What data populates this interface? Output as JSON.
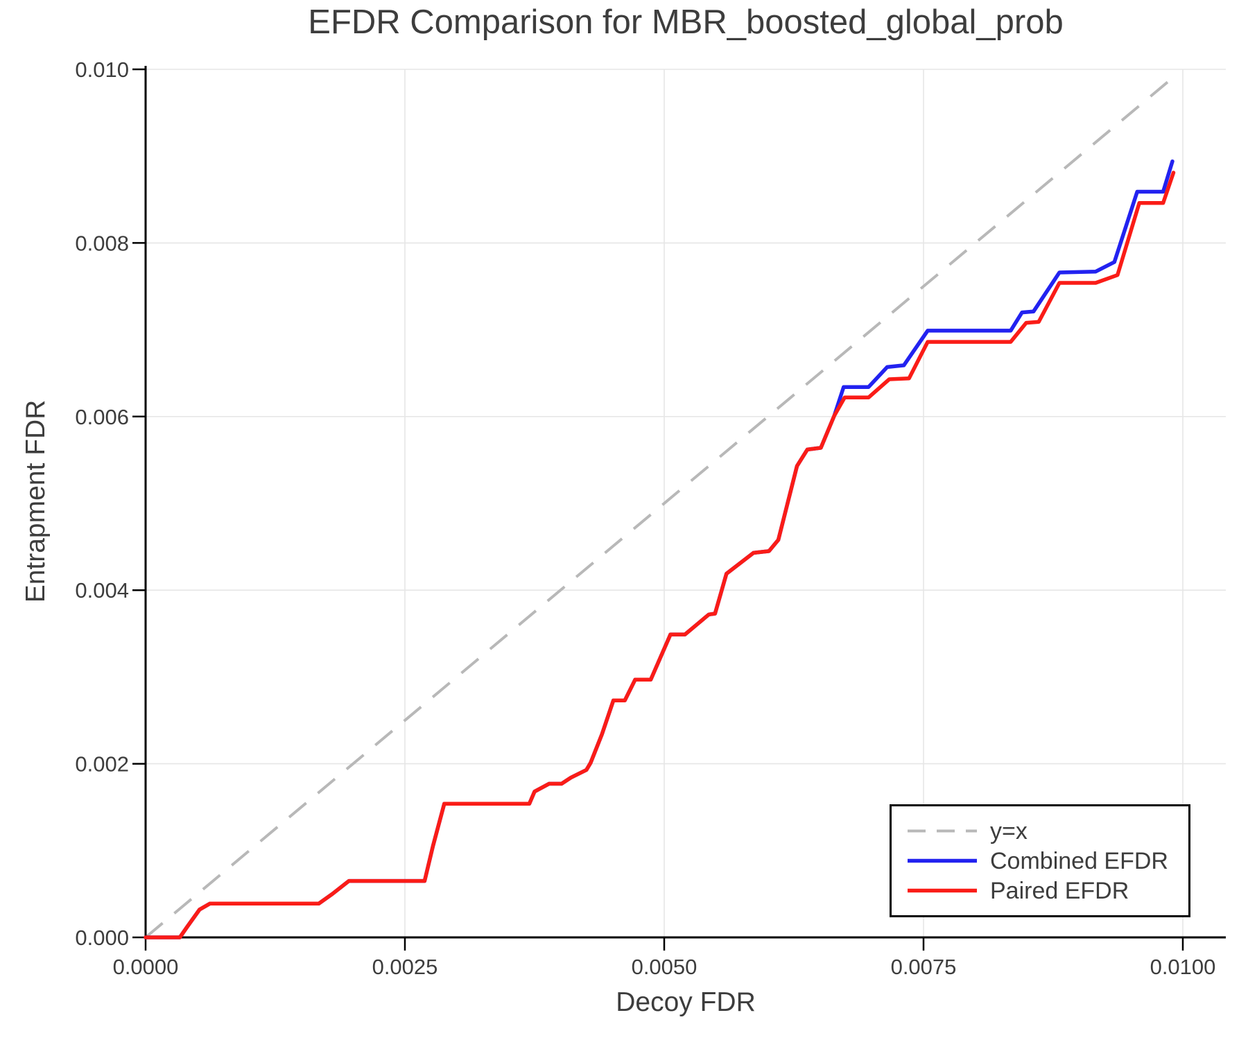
{
  "chart_data": {
    "type": "line",
    "title": "EFDR Comparison for MBR_boosted_global_prob",
    "xlabel": "Decoy FDR",
    "ylabel": "Entrapment FDR",
    "xlim": [
      0,
      0.01042
    ],
    "ylim": [
      0,
      0.01004
    ],
    "grid": true,
    "legend_position": "lower right",
    "xticks": [
      0,
      0.0025,
      0.005,
      0.0075,
      0.01
    ],
    "xtick_labels": [
      "0.0000",
      "0.0025",
      "0.0050",
      "0.0075",
      "0.0100"
    ],
    "yticks": [
      0,
      0.002,
      0.004,
      0.006,
      0.008,
      0.01
    ],
    "ytick_labels": [
      "0.000",
      "0.002",
      "0.004",
      "0.006",
      "0.008",
      "0.010"
    ],
    "identity_line": {
      "label": "y=x",
      "style": "dashed",
      "color": "#b8b8b8",
      "x": [
        0,
        0.00996
      ],
      "y": [
        0,
        0.00996
      ]
    },
    "series": [
      {
        "name": "Combined EFDR",
        "color": "#2222f0",
        "x": [
          0,
          0.00033,
          0.0004,
          0.00052,
          0.00062,
          0.00167,
          0.0018,
          0.00196,
          0.00269,
          0.00277,
          0.00288,
          0.0037,
          0.00375,
          0.00389,
          0.00401,
          0.0041,
          0.00425,
          0.00429,
          0.0044,
          0.00451,
          0.00462,
          0.00472,
          0.00487,
          0.00506,
          0.0052,
          0.00533,
          0.00543,
          0.00549,
          0.0056,
          0.00586,
          0.00601,
          0.0061,
          0.00628,
          0.00638,
          0.00651,
          0.00664,
          0.00673,
          0.00697,
          0.00715,
          0.00731,
          0.00754,
          0.00834,
          0.00845,
          0.00856,
          0.00881,
          0.00916,
          0.00934,
          0.00956,
          0.00981,
          0.0099
        ],
        "y": [
          0,
          0,
          0.00012,
          0.00032,
          0.00039,
          0.00039,
          0.0005,
          0.00065,
          0.00065,
          0.00105,
          0.00154,
          0.00154,
          0.00168,
          0.00177,
          0.00177,
          0.00184,
          0.00193,
          0.00201,
          0.00234,
          0.00273,
          0.00273,
          0.00297,
          0.00297,
          0.00349,
          0.00349,
          0.00362,
          0.00372,
          0.00373,
          0.00419,
          0.00443,
          0.00445,
          0.00458,
          0.00543,
          0.00562,
          0.00564,
          0.00601,
          0.00634,
          0.00634,
          0.00657,
          0.00659,
          0.00699,
          0.00699,
          0.0072,
          0.00721,
          0.00766,
          0.00767,
          0.00778,
          0.00859,
          0.00859,
          0.00894
        ]
      },
      {
        "name": "Paired EFDR",
        "color": "#fa1c17",
        "x": [
          0,
          0.00033,
          0.0004,
          0.00052,
          0.00062,
          0.00167,
          0.0018,
          0.00196,
          0.00269,
          0.00277,
          0.00288,
          0.0037,
          0.00375,
          0.00389,
          0.00401,
          0.0041,
          0.00425,
          0.00429,
          0.0044,
          0.00451,
          0.00462,
          0.00472,
          0.00487,
          0.00506,
          0.0052,
          0.00533,
          0.00543,
          0.00549,
          0.0056,
          0.00586,
          0.00601,
          0.0061,
          0.00628,
          0.00638,
          0.00651,
          0.00664,
          0.00674,
          0.00697,
          0.00717,
          0.00736,
          0.00754,
          0.00834,
          0.00849,
          0.00861,
          0.00881,
          0.00916,
          0.00937,
          0.00958,
          0.00981,
          0.00991
        ],
        "y": [
          0,
          0,
          0.00012,
          0.00032,
          0.00039,
          0.00039,
          0.0005,
          0.00065,
          0.00065,
          0.00105,
          0.00154,
          0.00154,
          0.00168,
          0.00177,
          0.00177,
          0.00184,
          0.00193,
          0.00201,
          0.00234,
          0.00273,
          0.00273,
          0.00297,
          0.00297,
          0.00349,
          0.00349,
          0.00362,
          0.00372,
          0.00373,
          0.00419,
          0.00443,
          0.00445,
          0.00458,
          0.00543,
          0.00562,
          0.00564,
          0.00601,
          0.00622,
          0.00622,
          0.00643,
          0.00644,
          0.00686,
          0.00686,
          0.00708,
          0.00709,
          0.00754,
          0.00754,
          0.00763,
          0.00846,
          0.00846,
          0.00881
        ]
      }
    ],
    "style": {
      "grid_color": "#e6e6e6",
      "spine_color": "#000000",
      "tick_label_color": "#3d3d3d",
      "text_color": "#3d3d3d",
      "background": "#ffffff"
    }
  }
}
